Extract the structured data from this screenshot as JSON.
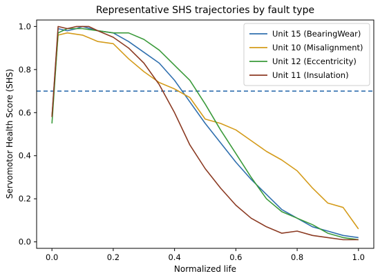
{
  "chart_data": {
    "type": "line",
    "title": "Representative SHS trajectories by fault type",
    "xlabel": "Normalized life",
    "ylabel": "Servomotor Health Score (SHS)",
    "xlim": [
      -0.05,
      1.05
    ],
    "ylim": [
      -0.03,
      1.03
    ],
    "xticks": [
      0.0,
      0.2,
      0.4,
      0.6,
      0.8,
      1.0
    ],
    "yticks": [
      0.0,
      0.2,
      0.4,
      0.6,
      0.8,
      1.0
    ],
    "grid": false,
    "legend_position": "top-right",
    "threshold": {
      "y": 0.7,
      "style": "dashed",
      "color": "#2f6fae"
    },
    "series": [
      {
        "name": "Unit 15 (BearingWear)",
        "color": "#2f6fae",
        "x": [
          0.0,
          0.02,
          0.05,
          0.08,
          0.1,
          0.15,
          0.2,
          0.25,
          0.3,
          0.35,
          0.4,
          0.45,
          0.5,
          0.55,
          0.6,
          0.65,
          0.7,
          0.75,
          0.8,
          0.85,
          0.9,
          0.95,
          1.0
        ],
        "y": [
          0.58,
          0.99,
          0.98,
          0.99,
          1.0,
          0.98,
          0.97,
          0.93,
          0.88,
          0.83,
          0.75,
          0.65,
          0.55,
          0.46,
          0.37,
          0.29,
          0.22,
          0.15,
          0.11,
          0.07,
          0.05,
          0.03,
          0.02
        ]
      },
      {
        "name": "Unit 10 (Misalignment)",
        "color": "#d49b1a",
        "x": [
          0.0,
          0.02,
          0.05,
          0.1,
          0.15,
          0.2,
          0.25,
          0.3,
          0.35,
          0.4,
          0.45,
          0.5,
          0.55,
          0.6,
          0.65,
          0.7,
          0.75,
          0.8,
          0.85,
          0.9,
          0.95,
          0.98,
          1.0
        ],
        "y": [
          0.58,
          0.96,
          0.97,
          0.96,
          0.93,
          0.92,
          0.85,
          0.79,
          0.74,
          0.71,
          0.67,
          0.57,
          0.55,
          0.52,
          0.47,
          0.42,
          0.38,
          0.33,
          0.25,
          0.18,
          0.16,
          0.1,
          0.06
        ]
      },
      {
        "name": "Unit 12 (Eccentricity)",
        "color": "#3a9a3a",
        "x": [
          0.0,
          0.02,
          0.05,
          0.1,
          0.15,
          0.2,
          0.25,
          0.3,
          0.35,
          0.4,
          0.45,
          0.5,
          0.55,
          0.6,
          0.65,
          0.7,
          0.75,
          0.8,
          0.85,
          0.9,
          0.95,
          1.0
        ],
        "y": [
          0.55,
          0.97,
          0.99,
          0.99,
          0.98,
          0.97,
          0.97,
          0.94,
          0.89,
          0.82,
          0.75,
          0.64,
          0.52,
          0.41,
          0.3,
          0.2,
          0.14,
          0.11,
          0.08,
          0.04,
          0.02,
          0.01
        ]
      },
      {
        "name": "Unit 11 (Insulation)",
        "color": "#8b3a22",
        "x": [
          0.0,
          0.02,
          0.05,
          0.08,
          0.12,
          0.15,
          0.2,
          0.25,
          0.3,
          0.35,
          0.4,
          0.45,
          0.5,
          0.55,
          0.6,
          0.65,
          0.7,
          0.75,
          0.8,
          0.85,
          0.9,
          0.95,
          1.0
        ],
        "y": [
          0.58,
          1.0,
          0.99,
          1.0,
          1.0,
          0.98,
          0.95,
          0.9,
          0.83,
          0.73,
          0.6,
          0.45,
          0.34,
          0.25,
          0.17,
          0.11,
          0.07,
          0.04,
          0.05,
          0.03,
          0.02,
          0.01,
          0.01
        ]
      }
    ]
  }
}
